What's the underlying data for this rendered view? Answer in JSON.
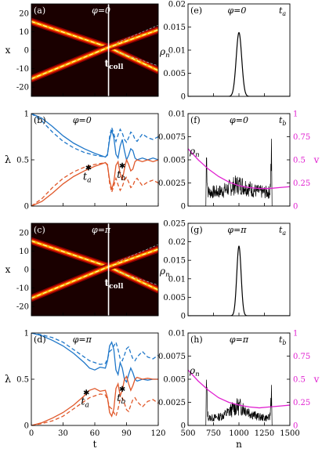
{
  "chart_data": [
    {
      "id": "a",
      "type": "heatmap",
      "panel_label": "(a)",
      "title": "φ=0",
      "xlim": [
        0,
        120
      ],
      "ylim": [
        -25,
        25
      ],
      "yticks": [
        "20",
        "10",
        "0",
        "-10",
        "-20"
      ],
      "ylabel": "x",
      "annotation": "t",
      "annotation_sub": "coll",
      "t_coll": 73,
      "trajectories": [
        {
          "name": "upper",
          "x": [
            0,
            73,
            120
          ],
          "y": [
            15.5,
            1.5,
            -11
          ]
        },
        {
          "name": "lower",
          "x": [
            0,
            73,
            120
          ],
          "y": [
            -15.5,
            1.5,
            11
          ]
        }
      ]
    },
    {
      "id": "b",
      "type": "line",
      "panel_label": "(b)",
      "title": "φ=0",
      "xlim": [
        0,
        120
      ],
      "ylim": [
        0,
        1
      ],
      "yticks": [
        "1",
        "0.5",
        "0"
      ],
      "ylabel": "λ",
      "markers": [
        {
          "label": "t",
          "sub": "a",
          "x": 54,
          "y": 0.42
        },
        {
          "label": "t",
          "sub": "b",
          "x": 86,
          "y": 0.44
        }
      ],
      "series": [
        {
          "color": "#1f77c9",
          "style": "solid",
          "x": [
            0,
            10,
            20,
            30,
            40,
            50,
            60,
            70,
            72,
            74,
            76,
            78,
            80,
            82,
            84,
            86,
            88,
            90,
            92,
            94,
            96,
            98,
            100,
            105,
            110,
            115,
            120
          ],
          "y": [
            1,
            0.95,
            0.86,
            0.76,
            0.68,
            0.62,
            0.57,
            0.53,
            0.56,
            0.72,
            0.82,
            0.74,
            0.56,
            0.52,
            0.65,
            0.72,
            0.6,
            0.5,
            0.55,
            0.62,
            0.6,
            0.52,
            0.5,
            0.52,
            0.5,
            0.52,
            0.5
          ]
        },
        {
          "color": "#1f77c9",
          "style": "dashed",
          "x": [
            0,
            10,
            20,
            30,
            40,
            50,
            60,
            70,
            72,
            74,
            76,
            78,
            80,
            82,
            84,
            86,
            88,
            90,
            92,
            94,
            96,
            98,
            100,
            105,
            110,
            115,
            120
          ],
          "y": [
            1,
            0.92,
            0.8,
            0.7,
            0.63,
            0.58,
            0.55,
            0.53,
            0.55,
            0.75,
            0.85,
            0.78,
            0.7,
            0.77,
            0.83,
            0.79,
            0.72,
            0.69,
            0.74,
            0.8,
            0.78,
            0.72,
            0.7,
            0.78,
            0.74,
            0.72,
            0.75
          ]
        },
        {
          "color": "#e0582a",
          "style": "solid",
          "x": [
            0,
            10,
            20,
            30,
            40,
            50,
            60,
            70,
            72,
            74,
            76,
            78,
            80,
            82,
            84,
            86,
            88,
            90,
            92,
            94,
            96,
            98,
            100,
            105,
            110,
            115,
            120
          ],
          "y": [
            0,
            0.05,
            0.14,
            0.24,
            0.32,
            0.38,
            0.43,
            0.47,
            0.44,
            0.28,
            0.18,
            0.26,
            0.44,
            0.48,
            0.35,
            0.28,
            0.4,
            0.5,
            0.45,
            0.38,
            0.4,
            0.48,
            0.5,
            0.48,
            0.5,
            0.48,
            0.5
          ]
        },
        {
          "color": "#e0582a",
          "style": "dashed",
          "x": [
            0,
            10,
            20,
            30,
            40,
            50,
            60,
            70,
            72,
            74,
            76,
            78,
            80,
            82,
            84,
            86,
            88,
            90,
            92,
            94,
            96,
            98,
            100,
            105,
            110,
            115,
            120
          ],
          "y": [
            0,
            0.08,
            0.2,
            0.3,
            0.37,
            0.42,
            0.45,
            0.47,
            0.45,
            0.25,
            0.15,
            0.22,
            0.3,
            0.23,
            0.17,
            0.21,
            0.28,
            0.31,
            0.26,
            0.2,
            0.22,
            0.28,
            0.3,
            0.22,
            0.26,
            0.28,
            0.25
          ]
        }
      ]
    },
    {
      "id": "c",
      "type": "heatmap",
      "panel_label": "(c)",
      "title": "φ=π",
      "xlim": [
        0,
        120
      ],
      "ylim": [
        -25,
        25
      ],
      "yticks": [
        "20",
        "10",
        "0",
        "-10",
        "-20"
      ],
      "ylabel": "x",
      "annotation": "t",
      "annotation_sub": "coll",
      "t_coll": 73,
      "trajectories": [
        {
          "name": "upper",
          "x": [
            0,
            73,
            120
          ],
          "y": [
            15.5,
            1.5,
            -11
          ]
        },
        {
          "name": "lower",
          "x": [
            0,
            73,
            120
          ],
          "y": [
            -15.5,
            1.5,
            11
          ]
        }
      ]
    },
    {
      "id": "d",
      "type": "line",
      "panel_label": "(d)",
      "title": "φ=π",
      "xlim": [
        0,
        120
      ],
      "ylim": [
        0,
        1
      ],
      "xticks": [
        "0",
        "30",
        "60",
        "90",
        "120"
      ],
      "yticks": [
        "1",
        "0.5",
        "0"
      ],
      "xlabel": "t",
      "ylabel": "λ",
      "markers": [
        {
          "label": "t",
          "sub": "a",
          "x": 52,
          "y": 0.36
        },
        {
          "label": "t",
          "sub": "b",
          "x": 86,
          "y": 0.4
        }
      ],
      "series": [
        {
          "color": "#1f77c9",
          "style": "solid",
          "x": [
            0,
            10,
            20,
            30,
            40,
            50,
            55,
            60,
            65,
            70,
            72,
            74,
            76,
            78,
            80,
            82,
            84,
            86,
            88,
            90,
            92,
            94,
            96,
            98,
            100,
            105,
            110,
            115,
            120
          ],
          "y": [
            1,
            0.97,
            0.92,
            0.86,
            0.78,
            0.68,
            0.62,
            0.6,
            0.63,
            0.62,
            0.7,
            0.86,
            0.9,
            0.82,
            0.6,
            0.55,
            0.68,
            0.62,
            0.5,
            0.47,
            0.55,
            0.62,
            0.57,
            0.5,
            0.48,
            0.5,
            0.49,
            0.5,
            0.5
          ]
        },
        {
          "color": "#1f77c9",
          "style": "dashed",
          "x": [
            0,
            10,
            20,
            30,
            40,
            50,
            55,
            60,
            65,
            70,
            72,
            74,
            76,
            78,
            80,
            82,
            84,
            86,
            88,
            90,
            92,
            94,
            96,
            98,
            100,
            105,
            110,
            115,
            120
          ],
          "y": [
            1,
            0.98,
            0.95,
            0.9,
            0.82,
            0.74,
            0.7,
            0.68,
            0.66,
            0.67,
            0.72,
            0.8,
            0.82,
            0.86,
            0.9,
            0.82,
            0.72,
            0.7,
            0.76,
            0.83,
            0.85,
            0.78,
            0.72,
            0.7,
            0.74,
            0.8,
            0.74,
            0.72,
            0.76
          ]
        },
        {
          "color": "#e0582a",
          "style": "solid",
          "x": [
            0,
            10,
            20,
            30,
            40,
            50,
            55,
            60,
            65,
            70,
            72,
            74,
            76,
            78,
            80,
            82,
            84,
            86,
            88,
            90,
            92,
            94,
            96,
            98,
            100,
            105,
            110,
            115,
            120
          ],
          "y": [
            0,
            0.03,
            0.08,
            0.14,
            0.22,
            0.32,
            0.38,
            0.4,
            0.37,
            0.38,
            0.3,
            0.14,
            0.1,
            0.18,
            0.4,
            0.45,
            0.32,
            0.38,
            0.5,
            0.53,
            0.45,
            0.38,
            0.43,
            0.5,
            0.52,
            0.5,
            0.51,
            0.5,
            0.5
          ]
        },
        {
          "color": "#e0582a",
          "style": "dashed",
          "x": [
            0,
            10,
            20,
            30,
            40,
            50,
            55,
            60,
            65,
            70,
            72,
            74,
            76,
            78,
            80,
            82,
            84,
            86,
            88,
            90,
            92,
            94,
            96,
            98,
            100,
            105,
            110,
            115,
            120
          ],
          "y": [
            0,
            0.02,
            0.05,
            0.1,
            0.18,
            0.26,
            0.3,
            0.32,
            0.34,
            0.33,
            0.28,
            0.2,
            0.18,
            0.14,
            0.1,
            0.18,
            0.28,
            0.3,
            0.24,
            0.17,
            0.15,
            0.22,
            0.28,
            0.3,
            0.26,
            0.2,
            0.26,
            0.28,
            0.24
          ]
        }
      ]
    },
    {
      "id": "e",
      "type": "line",
      "panel_label": "(e)",
      "title": "φ=0",
      "time_label": "t",
      "time_sub": "a",
      "xlim": [
        500,
        1500
      ],
      "ylim": [
        0,
        0.02
      ],
      "yticks": [
        "0.02",
        "0.015",
        "0.01",
        "0.005",
        "0"
      ],
      "ylabel": "ρ",
      "ylabel_sub": "n",
      "peak": {
        "center": 1000,
        "height": 0.0138,
        "width": 38
      }
    },
    {
      "id": "f",
      "type": "line",
      "panel_label": "(f)",
      "title": "φ=0",
      "time_label": "t",
      "time_sub": "b",
      "xlim": [
        500,
        1500
      ],
      "ylim": [
        0,
        0.01
      ],
      "y2lim": [
        0,
        1
      ],
      "yticks": [
        "0.01",
        "0.0075",
        "0.005",
        "0.0025",
        "0"
      ],
      "y2ticks": [
        "1",
        "0.75",
        "0.5",
        "0.25",
        "0"
      ],
      "ylabel": "ρ",
      "ylabel_sub": "n",
      "y2label": "v",
      "profile": {
        "start": 680,
        "end": 1320,
        "edge_peak": 0.0078,
        "floor": 0.0022,
        "center_bump": 0.0012
      },
      "velocity": {
        "color": "#e020d0",
        "x": [
          500,
          600,
          700,
          800,
          900,
          1000,
          1100,
          1200,
          1300,
          1400,
          1500
        ],
        "y": [
          0.62,
          0.5,
          0.4,
          0.32,
          0.26,
          0.22,
          0.2,
          0.19,
          0.19,
          0.2,
          0.21
        ]
      }
    },
    {
      "id": "g",
      "type": "line",
      "panel_label": "(g)",
      "title": "φ=π",
      "time_label": "t",
      "time_sub": "a",
      "xlim": [
        500,
        1500
      ],
      "ylim": [
        0,
        0.025
      ],
      "yticks": [
        "0.025",
        "0.02",
        "0.015",
        "0.01",
        "0.005",
        "0"
      ],
      "ylabel": "ρ",
      "ylabel_sub": "n",
      "peak": {
        "center": 1000,
        "height": 0.0188,
        "width": 30
      }
    },
    {
      "id": "h",
      "type": "line",
      "panel_label": "(h)",
      "title": "φ=π",
      "time_label": "t",
      "time_sub": "b",
      "xlim": [
        500,
        1500
      ],
      "ylim": [
        0,
        0.01
      ],
      "y2lim": [
        0,
        1
      ],
      "xticks": [
        "500",
        "750",
        "1000",
        "1250",
        "1500"
      ],
      "yticks": [
        "0.01",
        "0.0075",
        "0.005",
        "0.0025",
        "0"
      ],
      "y2ticks": [
        "1",
        "0.75",
        "0.5",
        "0.25",
        "0"
      ],
      "xlabel": "n",
      "ylabel": "ρ",
      "ylabel_sub": "n",
      "y2label": "v",
      "profile": {
        "start": 680,
        "end": 1320,
        "edge_peak": 0.006,
        "floor": 0.0012,
        "center_bump": 0.0018
      },
      "velocity": {
        "color": "#e020d0",
        "x": [
          500,
          600,
          700,
          800,
          900,
          1000,
          1100,
          1200,
          1300,
          1400,
          1500
        ],
        "y": [
          0.6,
          0.48,
          0.38,
          0.3,
          0.25,
          0.22,
          0.2,
          0.19,
          0.2,
          0.21,
          0.22
        ]
      }
    }
  ]
}
